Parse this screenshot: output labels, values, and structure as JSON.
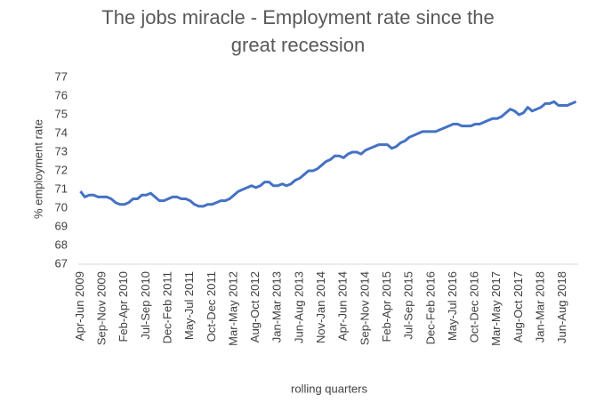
{
  "chart_data": {
    "type": "line",
    "title": "The jobs miracle - Employment rate since the great recession",
    "y_label": "% employment rate",
    "x_label": "rolling quarters",
    "color": "#4472c4",
    "ylim": [
      67,
      77
    ],
    "yticks": [
      67,
      68,
      69,
      70,
      71,
      72,
      73,
      74,
      75,
      76,
      77
    ],
    "grid": false,
    "categories": [
      "Apr-Jun 2009",
      null,
      null,
      null,
      null,
      "Sep-Nov 2009",
      null,
      null,
      null,
      null,
      "Feb-Apr 2010",
      null,
      null,
      null,
      null,
      "Jul-Sep 2010",
      null,
      null,
      null,
      null,
      "Dec-Feb 2011",
      null,
      null,
      null,
      null,
      "May-Jul 2011",
      null,
      null,
      null,
      null,
      "Oct-Dec 2011",
      null,
      null,
      null,
      null,
      "Mar-May 2012",
      null,
      null,
      null,
      null,
      "Aug-Oct 2012",
      null,
      null,
      null,
      null,
      "Jan-Mar 2013",
      null,
      null,
      null,
      null,
      "Jun-Aug 2013",
      null,
      null,
      null,
      null,
      "Nov-Jan 2014",
      null,
      null,
      null,
      null,
      "Apr-Jun 2014",
      null,
      null,
      null,
      null,
      "Sep-Nov 2014",
      null,
      null,
      null,
      null,
      "Feb-Apr 2015",
      null,
      null,
      null,
      null,
      "Jul-Sep 2015",
      null,
      null,
      null,
      null,
      "Dec-Feb 2016",
      null,
      null,
      null,
      null,
      "May-Jul 2016",
      null,
      null,
      null,
      null,
      "Oct-Dec 2016",
      null,
      null,
      null,
      null,
      "Mar-May 2017",
      null,
      null,
      null,
      null,
      "Aug-Oct 2017",
      null,
      null,
      null,
      null,
      "Jan-Mar 2018",
      null,
      null,
      null,
      null,
      "Jun-Aug 2018",
      null,
      null,
      null
    ],
    "values": [
      70.9,
      70.6,
      70.7,
      70.7,
      70.6,
      70.6,
      70.6,
      70.5,
      70.3,
      70.2,
      70.2,
      70.3,
      70.5,
      70.5,
      70.7,
      70.7,
      70.8,
      70.6,
      70.4,
      70.4,
      70.5,
      70.6,
      70.6,
      70.5,
      70.5,
      70.4,
      70.2,
      70.1,
      70.1,
      70.2,
      70.2,
      70.3,
      70.4,
      70.4,
      70.5,
      70.7,
      70.9,
      71.0,
      71.1,
      71.2,
      71.1,
      71.2,
      71.4,
      71.4,
      71.2,
      71.2,
      71.3,
      71.2,
      71.3,
      71.5,
      71.6,
      71.8,
      72.0,
      72.0,
      72.1,
      72.3,
      72.5,
      72.6,
      72.8,
      72.8,
      72.7,
      72.9,
      73.0,
      73.0,
      72.9,
      73.1,
      73.2,
      73.3,
      73.4,
      73.4,
      73.4,
      73.2,
      73.3,
      73.5,
      73.6,
      73.8,
      73.9,
      74.0,
      74.1,
      74.1,
      74.1,
      74.1,
      74.2,
      74.3,
      74.4,
      74.5,
      74.5,
      74.4,
      74.4,
      74.4,
      74.5,
      74.5,
      74.6,
      74.7,
      74.8,
      74.8,
      74.9,
      75.1,
      75.3,
      75.2,
      75.0,
      75.1,
      75.4,
      75.2,
      75.3,
      75.4,
      75.6,
      75.6,
      75.7,
      75.5,
      75.5,
      75.5,
      75.6,
      75.7
    ]
  }
}
